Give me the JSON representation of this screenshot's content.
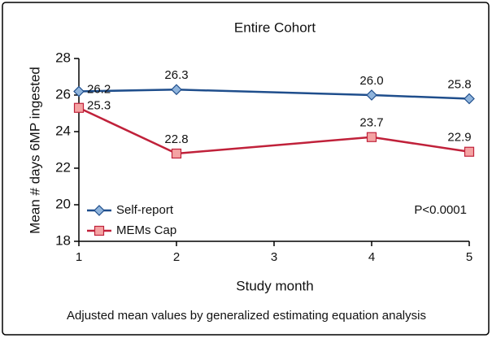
{
  "chart_data": {
    "type": "line",
    "title": "Entire Cohort",
    "x_label": "Study month",
    "y_label": "Mean # days 6MP ingested",
    "x": [
      1,
      2,
      4,
      5
    ],
    "series": [
      {
        "name": "Self-report",
        "color": "#1f4e8c",
        "marker_fill": "#8fb4dc",
        "marker": "diamond",
        "values": [
          26.2,
          26.3,
          26.0,
          25.8
        ],
        "value_labels": [
          "26.2",
          "26.3",
          "26.0",
          "25.8"
        ]
      },
      {
        "name": "MEMs Cap",
        "color": "#c0213a",
        "marker_fill": "#f4a3a3",
        "marker": "square",
        "values": [
          25.3,
          22.8,
          23.7,
          22.9
        ],
        "value_labels": [
          "25.3",
          "22.8",
          "23.7",
          "22.9"
        ]
      }
    ],
    "xlim": [
      1,
      5
    ],
    "xticks": [
      1,
      2,
      3,
      4,
      5
    ],
    "ylim": [
      18,
      28
    ],
    "yticks": [
      18,
      20,
      22,
      24,
      26,
      28
    ],
    "annotation": "P<0.0001",
    "footnote": "Adjusted mean values by generalized estimating equation analysis",
    "legend": "lower left"
  }
}
